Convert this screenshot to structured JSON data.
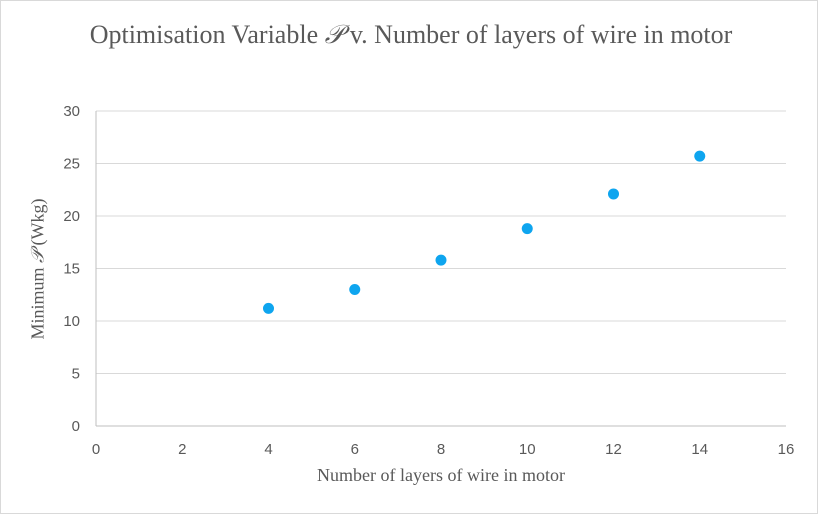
{
  "chart_data": {
    "type": "scatter",
    "title_prefix": "Optimisation Variable ",
    "title_symbol": "𝒫",
    "title_suffix": " v. Number of layers of wire in motor",
    "xlabel": "Number of layers of wire in motor",
    "ylabel_prefix": "Minimum ",
    "ylabel_symbol": "𝒫",
    "ylabel_suffix": " (Wkg)",
    "xlim": [
      0,
      16
    ],
    "ylim": [
      0,
      30
    ],
    "x_ticks": [
      0,
      2,
      4,
      6,
      8,
      10,
      12,
      14,
      16
    ],
    "y_ticks": [
      0,
      5,
      10,
      15,
      20,
      25,
      30
    ],
    "grid": "horizontal",
    "legend": "none",
    "series": [
      {
        "color": "#0ea5ef",
        "x": [
          4,
          6,
          8,
          10,
          12,
          14
        ],
        "y": [
          11.2,
          13.0,
          15.8,
          18.8,
          22.1,
          25.7
        ]
      }
    ]
  }
}
